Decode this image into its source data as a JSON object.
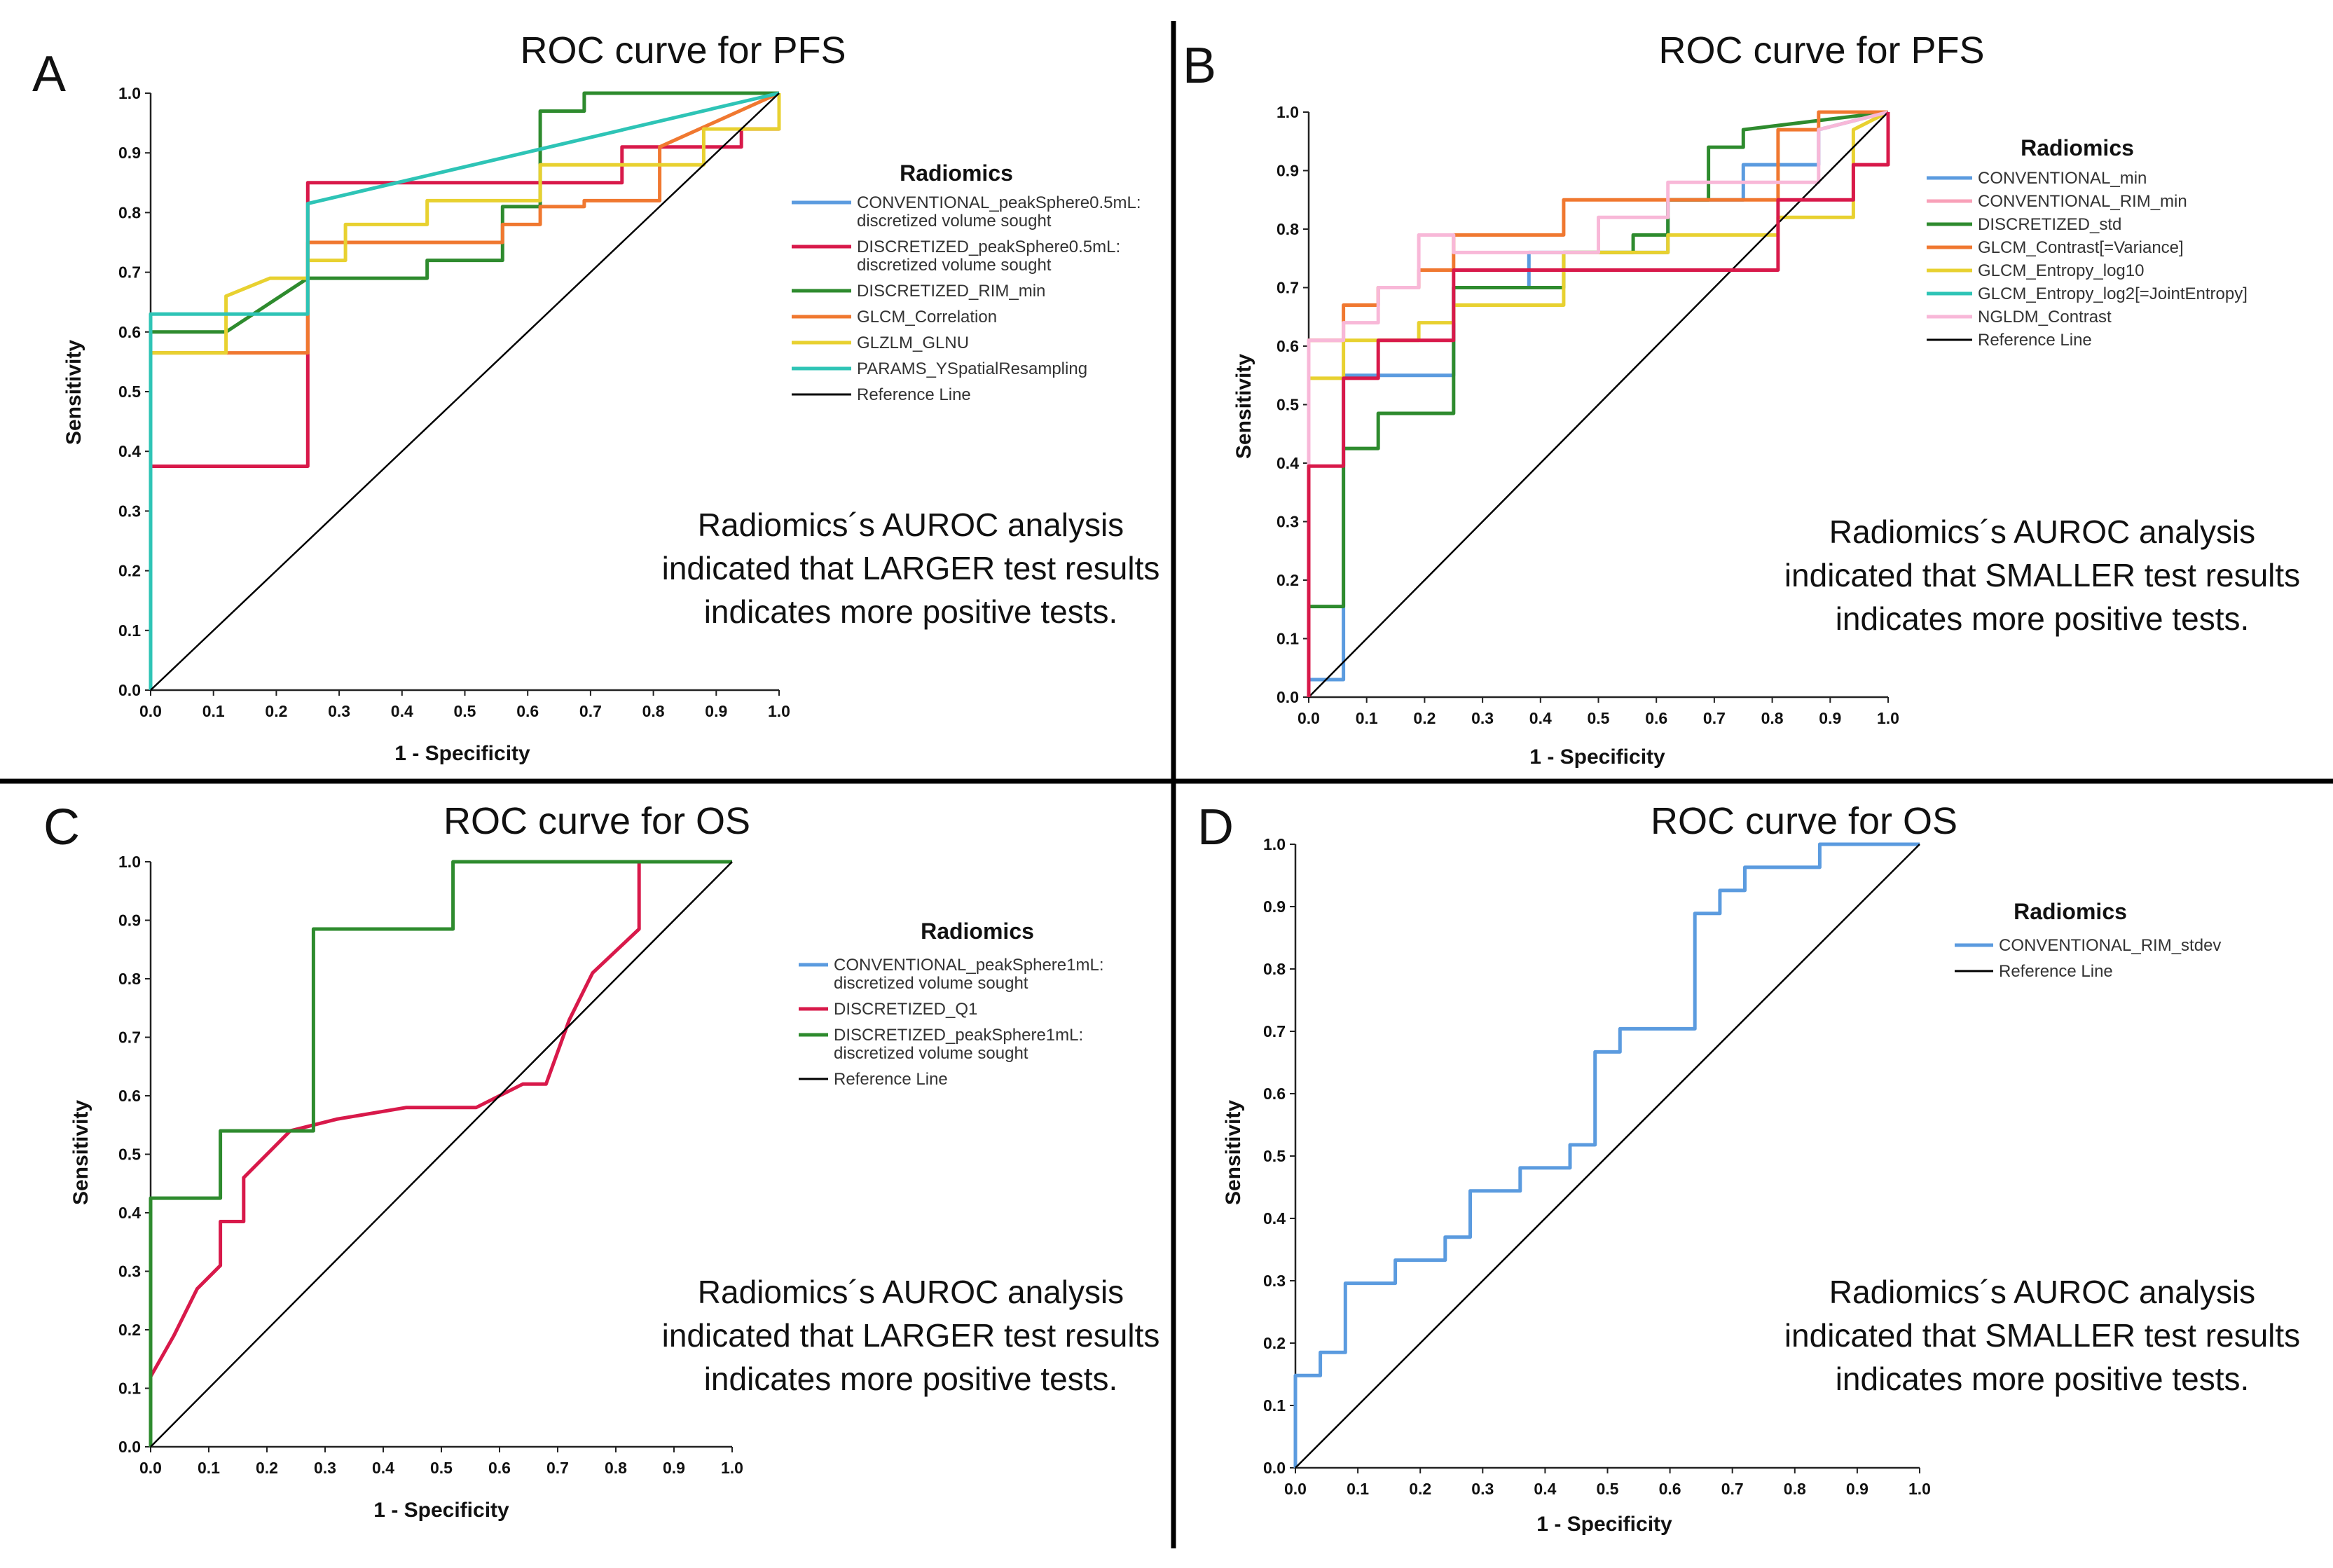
{
  "figure": {
    "panels": [
      {
        "letter": "A"
      },
      {
        "letter": "B"
      },
      {
        "letter": "C"
      },
      {
        "letter": "D"
      }
    ]
  },
  "colors": {
    "blue": "#5b9bdf",
    "red": "#d8194a",
    "green": "#2e8b2e",
    "orange": "#f07830",
    "yellow": "#e8d130",
    "teal": "#2ec4b6",
    "pink": "#f8b8d8",
    "black": "#000000"
  },
  "chart_data": [
    {
      "type": "line",
      "panel": "A",
      "title": "ROC curve for PFS",
      "xlabel": "1 - Specificity",
      "ylabel": "Sensitivity",
      "xlim": [
        0,
        1
      ],
      "ylim": [
        0,
        1
      ],
      "xticks": [
        "0.0",
        "0.1",
        "0.2",
        "0.3",
        "0.4",
        "0.5",
        "0.6",
        "0.7",
        "0.8",
        "0.9",
        "1.0"
      ],
      "yticks": [
        "0.0",
        "0.1",
        "0.2",
        "0.3",
        "0.4",
        "0.5",
        "0.6",
        "0.7",
        "0.8",
        "0.9",
        "1.0"
      ],
      "legend_title": "Radiomics",
      "legend_position": "right",
      "note": [
        "Radiomics´s AUROC analysis",
        "indicated that LARGER test results",
        "indicates more positive tests."
      ],
      "series": [
        {
          "name": "CONVENTIONAL_peakSphere0.5mL:\ndiscretized volume sought",
          "color": "#5b9bdf",
          "x": [],
          "y": []
        },
        {
          "name": "DISCRETIZED_peakSphere0.5mL:\ndiscretized volume sought",
          "color": "#d8194a",
          "x": [
            0,
            0,
            0.25,
            0.25,
            0.75,
            0.75,
            0.94,
            0.94,
            1,
            1
          ],
          "y": [
            0,
            0.375,
            0.375,
            0.85,
            0.85,
            0.91,
            0.91,
            0.94,
            0.94,
            1
          ]
        },
        {
          "name": "DISCRETIZED_RIM_min",
          "color": "#2e8b2e",
          "x": [
            0,
            0,
            0.12,
            0.25,
            0.44,
            0.44,
            0.56,
            0.56,
            0.62,
            0.62,
            0.69,
            0.69,
            1
          ],
          "y": [
            0,
            0.6,
            0.6,
            0.69,
            0.69,
            0.72,
            0.72,
            0.81,
            0.81,
            0.97,
            0.97,
            1,
            1
          ]
        },
        {
          "name": "GLCM_Correlation",
          "color": "#f07830",
          "x": [
            0,
            0,
            0.25,
            0.25,
            0.56,
            0.56,
            0.62,
            0.62,
            0.69,
            0.69,
            0.81,
            0.81,
            1
          ],
          "y": [
            0,
            0.565,
            0.565,
            0.75,
            0.75,
            0.78,
            0.78,
            0.81,
            0.81,
            0.82,
            0.82,
            0.91,
            1
          ]
        },
        {
          "name": "GLZLM_GLNU",
          "color": "#e8d130",
          "x": [
            0,
            0,
            0.12,
            0.12,
            0.19,
            0.25,
            0.25,
            0.31,
            0.31,
            0.44,
            0.44,
            0.62,
            0.62,
            0.88,
            0.88,
            1,
            1
          ],
          "y": [
            0,
            0.565,
            0.565,
            0.66,
            0.69,
            0.69,
            0.72,
            0.72,
            0.78,
            0.78,
            0.82,
            0.82,
            0.88,
            0.88,
            0.94,
            0.94,
            1
          ]
        },
        {
          "name": "PARAMS_YSpatialResampling",
          "color": "#2ec4b6",
          "x": [
            0,
            0,
            0.25,
            0.25,
            1
          ],
          "y": [
            0,
            0.63,
            0.63,
            0.815,
            1
          ]
        },
        {
          "name": "Reference Line",
          "color": "#000000",
          "x": [
            0,
            1
          ],
          "y": [
            0,
            1
          ]
        }
      ]
    },
    {
      "type": "line",
      "panel": "B",
      "title": "ROC curve for PFS",
      "xlabel": "1 - Specificity",
      "ylabel": "Sensitivity",
      "xlim": [
        0,
        1
      ],
      "ylim": [
        0,
        1
      ],
      "xticks": [
        "0.0",
        "0.1",
        "0.2",
        "0.3",
        "0.4",
        "0.5",
        "0.6",
        "0.7",
        "0.8",
        "0.9",
        "1.0"
      ],
      "yticks": [
        "0.0",
        "0.1",
        "0.2",
        "0.3",
        "0.4",
        "0.5",
        "0.6",
        "0.7",
        "0.8",
        "0.9",
        "1.0"
      ],
      "legend_title": "Radiomics",
      "legend_position": "right",
      "note": [
        "Radiomics´s AUROC analysis",
        "indicated that SMALLER test results",
        "indicates more positive tests."
      ],
      "series": [
        {
          "name": "CONVENTIONAL_min",
          "color": "#5b9bdf",
          "x": [
            0,
            0,
            0.06,
            0.06,
            0.25,
            0.25,
            0.38,
            0.38,
            0.62,
            0.62,
            0.75,
            0.75,
            0.88,
            0.88,
            1
          ],
          "y": [
            0,
            0.03,
            0.03,
            0.55,
            0.55,
            0.7,
            0.7,
            0.76,
            0.76,
            0.85,
            0.85,
            0.91,
            0.91,
            0.97,
            1
          ]
        },
        {
          "name": "CONVENTIONAL_RIM_min",
          "color": "#f8a0b8",
          "x": [],
          "y": []
        },
        {
          "name": "DISCRETIZED_std",
          "color": "#2e8b2e",
          "x": [
            0,
            0,
            0.06,
            0.06,
            0.12,
            0.12,
            0.25,
            0.25,
            0.44,
            0.44,
            0.56,
            0.56,
            0.62,
            0.62,
            0.69,
            0.69,
            0.75,
            0.75,
            1
          ],
          "y": [
            0,
            0.155,
            0.155,
            0.425,
            0.425,
            0.485,
            0.485,
            0.7,
            0.7,
            0.76,
            0.76,
            0.79,
            0.79,
            0.85,
            0.85,
            0.94,
            0.94,
            0.97,
            1
          ]
        },
        {
          "name": "GLCM_Contrast[=Variance]",
          "color": "#f07830",
          "x": [
            0,
            0,
            0.06,
            0.06,
            0.12,
            0.12,
            0.19,
            0.19,
            0.25,
            0.25,
            0.44,
            0.44,
            0.81,
            0.81,
            0.88,
            0.88,
            1
          ],
          "y": [
            0,
            0.61,
            0.61,
            0.67,
            0.67,
            0.7,
            0.7,
            0.73,
            0.73,
            0.79,
            0.79,
            0.85,
            0.85,
            0.97,
            0.97,
            1,
            1
          ]
        },
        {
          "name": "GLCM_Entropy_log10",
          "color": "#e8d130",
          "x": [
            0,
            0,
            0.06,
            0.06,
            0.19,
            0.19,
            0.25,
            0.25,
            0.44,
            0.44,
            0.62,
            0.62,
            0.81,
            0.81,
            0.94,
            0.94,
            1
          ],
          "y": [
            0,
            0.545,
            0.545,
            0.61,
            0.61,
            0.64,
            0.64,
            0.67,
            0.67,
            0.76,
            0.76,
            0.79,
            0.79,
            0.82,
            0.82,
            0.97,
            1
          ]
        },
        {
          "name": "GLCM_Entropy_log2[=JointEntropy]",
          "color": "#2ec4b6",
          "x": [],
          "y": []
        },
        {
          "name": "NGLDM_Contrast",
          "color": "#f8b8d8",
          "x": [
            0,
            0,
            0.06,
            0.06,
            0.12,
            0.12,
            0.19,
            0.19,
            0.25,
            0.25,
            0.5,
            0.5,
            0.62,
            0.62,
            0.88,
            0.88,
            1
          ],
          "y": [
            0,
            0.61,
            0.61,
            0.64,
            0.64,
            0.7,
            0.7,
            0.79,
            0.79,
            0.76,
            0.76,
            0.82,
            0.82,
            0.88,
            0.88,
            0.97,
            1
          ]
        },
        {
          "name": "Reference Line",
          "color": "#000000",
          "x": [
            0,
            1
          ],
          "y": [
            0,
            1
          ]
        },
        {
          "name": "",
          "color": "#d8194a",
          "x": [
            0,
            0,
            0.06,
            0.06,
            0.12,
            0.12,
            0.25,
            0.25,
            0.81,
            0.81,
            0.94,
            0.94,
            1,
            1
          ],
          "y": [
            0,
            0.395,
            0.395,
            0.545,
            0.545,
            0.61,
            0.61,
            0.73,
            0.73,
            0.85,
            0.85,
            0.91,
            0.91,
            1
          ]
        }
      ]
    },
    {
      "type": "line",
      "panel": "C",
      "title": "ROC curve for OS",
      "xlabel": "1 - Specificity",
      "ylabel": "Sensitivity",
      "xlim": [
        0,
        1
      ],
      "ylim": [
        0,
        1
      ],
      "xticks": [
        "0.0",
        "0.1",
        "0.2",
        "0.3",
        "0.4",
        "0.5",
        "0.6",
        "0.7",
        "0.8",
        "0.9",
        "1.0"
      ],
      "yticks": [
        "0.0",
        "0.1",
        "0.2",
        "0.3",
        "0.4",
        "0.5",
        "0.6",
        "0.7",
        "0.8",
        "0.9",
        "1.0"
      ],
      "legend_title": "Radiomics",
      "legend_position": "right",
      "note": [
        "Radiomics´s AUROC analysis",
        "indicated that LARGER test results",
        "indicates more positive tests."
      ],
      "series": [
        {
          "name": "CONVENTIONAL_peakSphere1mL:\ndiscretized volume sought",
          "color": "#5b9bdf",
          "x": [],
          "y": []
        },
        {
          "name": "DISCRETIZED_Q1",
          "color": "#d8194a",
          "x": [
            0,
            0,
            0.04,
            0.08,
            0.12,
            0.12,
            0.16,
            0.16,
            0.2,
            0.24,
            0.32,
            0.44,
            0.56,
            0.64,
            0.68,
            0.72,
            0.76,
            0.84,
            0.84,
            1
          ],
          "y": [
            0,
            0.12,
            0.19,
            0.27,
            0.31,
            0.385,
            0.385,
            0.46,
            0.5,
            0.54,
            0.56,
            0.58,
            0.58,
            0.62,
            0.62,
            0.73,
            0.81,
            0.885,
            1,
            1
          ]
        },
        {
          "name": "DISCRETIZED_peakSphere1mL:\ndiscretized volume sought",
          "color": "#2e8b2e",
          "x": [
            0,
            0,
            0.12,
            0.12,
            0.28,
            0.28,
            0.52,
            0.52,
            1
          ],
          "y": [
            0,
            0.425,
            0.425,
            0.54,
            0.54,
            0.885,
            0.885,
            1,
            1
          ]
        },
        {
          "name": "Reference Line",
          "color": "#000000",
          "x": [
            0,
            1
          ],
          "y": [
            0,
            1
          ]
        }
      ]
    },
    {
      "type": "line",
      "panel": "D",
      "title": "ROC curve for OS",
      "xlabel": "1 - Specificity",
      "ylabel": "Sensitivity",
      "xlim": [
        0,
        1
      ],
      "ylim": [
        0,
        1
      ],
      "xticks": [
        "0.0",
        "0.1",
        "0.2",
        "0.3",
        "0.4",
        "0.5",
        "0.6",
        "0.7",
        "0.8",
        "0.9",
        "1.0"
      ],
      "yticks": [
        "0.0",
        "0.1",
        "0.2",
        "0.3",
        "0.4",
        "0.5",
        "0.6",
        "0.7",
        "0.8",
        "0.9",
        "1.0"
      ],
      "legend_title": "Radiomics",
      "legend_position": "right",
      "note": [
        "Radiomics´s AUROC analysis",
        "indicated that SMALLER test results",
        "indicates more positive tests."
      ],
      "series": [
        {
          "name": "CONVENTIONAL_RIM_stdev",
          "color": "#5b9bdf",
          "x": [
            0,
            0,
            0.04,
            0.04,
            0.08,
            0.08,
            0.16,
            0.16,
            0.24,
            0.24,
            0.28,
            0.28,
            0.36,
            0.36,
            0.44,
            0.44,
            0.48,
            0.48,
            0.52,
            0.52,
            0.64,
            0.64,
            0.68,
            0.68,
            0.72,
            0.72,
            0.84,
            0.84,
            1
          ],
          "y": [
            0,
            0.148,
            0.148,
            0.185,
            0.185,
            0.296,
            0.296,
            0.333,
            0.333,
            0.37,
            0.37,
            0.444,
            0.444,
            0.481,
            0.481,
            0.518,
            0.518,
            0.667,
            0.667,
            0.704,
            0.704,
            0.889,
            0.889,
            0.926,
            0.926,
            0.963,
            0.963,
            1,
            1
          ]
        },
        {
          "name": "Reference Line",
          "color": "#000000",
          "x": [
            0,
            1
          ],
          "y": [
            0,
            1
          ]
        }
      ]
    }
  ]
}
